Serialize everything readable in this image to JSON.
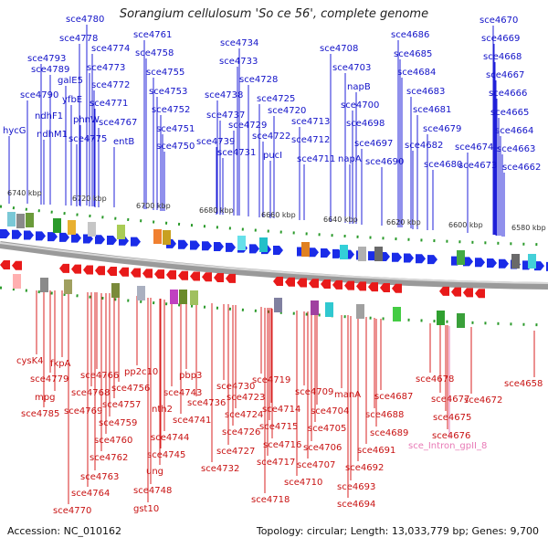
{
  "title": "Sorangium cellulosum 'So ce 56', complete genome",
  "accession": "Accession: NC_010162",
  "summary": "Topology: circular; Length: 13,033,779 bp; Genes: 9,700",
  "scale_labels": [
    "6740 kbp",
    "6720 kbp",
    "6700 kbp",
    "6680 kbp",
    "6660 kbp",
    "6640 kbp",
    "6620 kbp",
    "6600 kbp",
    "6580 kbp"
  ],
  "forward_genes": [
    "sce4780",
    "sce4778",
    "sce4774",
    "sce4773",
    "sce4772",
    "sce4771",
    "sce4767",
    "sce4793",
    "sce4789",
    "galE5",
    "yfbE",
    "phnW",
    "sce4775",
    "entB",
    "sce4790",
    "ndhF1",
    "ndhM1",
    "hycG",
    "sce4761",
    "sce4758",
    "sce4755",
    "sce4753",
    "sce4752",
    "sce4751",
    "sce4750",
    "sce4734",
    "sce4733",
    "sce4728",
    "sce4725",
    "sce4738",
    "sce4737",
    "sce4729",
    "sce4739",
    "sce4731",
    "sce4722",
    "sce4720",
    "pucI",
    "sce4708",
    "sce4703",
    "napB",
    "sce4700",
    "sce4698",
    "sce4697",
    "sce4713",
    "sce4712",
    "sce4711",
    "napA",
    "sce4690",
    "sce4686",
    "sce4685",
    "sce4684",
    "sce4683",
    "sce4681",
    "sce4679",
    "sce4682",
    "sce4680",
    "sce4674",
    "sce4673",
    "sce4670",
    "sce4669",
    "sce4668",
    "sce4667",
    "sce4666",
    "sce4665",
    "sce4664",
    "sce4663",
    "sce4662"
  ],
  "reverse_genes": [
    "cysK4",
    "sce4779",
    "fkpA",
    "mpg",
    "sce4785",
    "sce4766",
    "sce4768",
    "sce4769",
    "sce4756",
    "sce4757",
    "sce4759",
    "sce4760",
    "sce4762",
    "sce4763",
    "sce4764",
    "sce4770",
    "pp2c10",
    "nth2",
    "sce4743",
    "sce4741",
    "sce4744",
    "sce4745",
    "ung",
    "sce4748",
    "gst10",
    "pbp3",
    "sce4736",
    "sce4730",
    "sce4723",
    "sce4724",
    "sce4726",
    "sce4727",
    "sce4732",
    "sce4719",
    "sce4714",
    "sce4715",
    "sce4716",
    "sce4717",
    "sce4718",
    "sce4709",
    "sce4704",
    "sce4705",
    "sce4706",
    "sce4707",
    "sce4710",
    "manA",
    "sce4687",
    "sce4688",
    "sce4689",
    "sce4691",
    "sce4692",
    "sce4693",
    "sce4694",
    "sce4678",
    "sce4677",
    "sce4675",
    "sce4676",
    "sce4672",
    "sce4658"
  ],
  "intron_label": "sce_Intron_gpII_8"
}
